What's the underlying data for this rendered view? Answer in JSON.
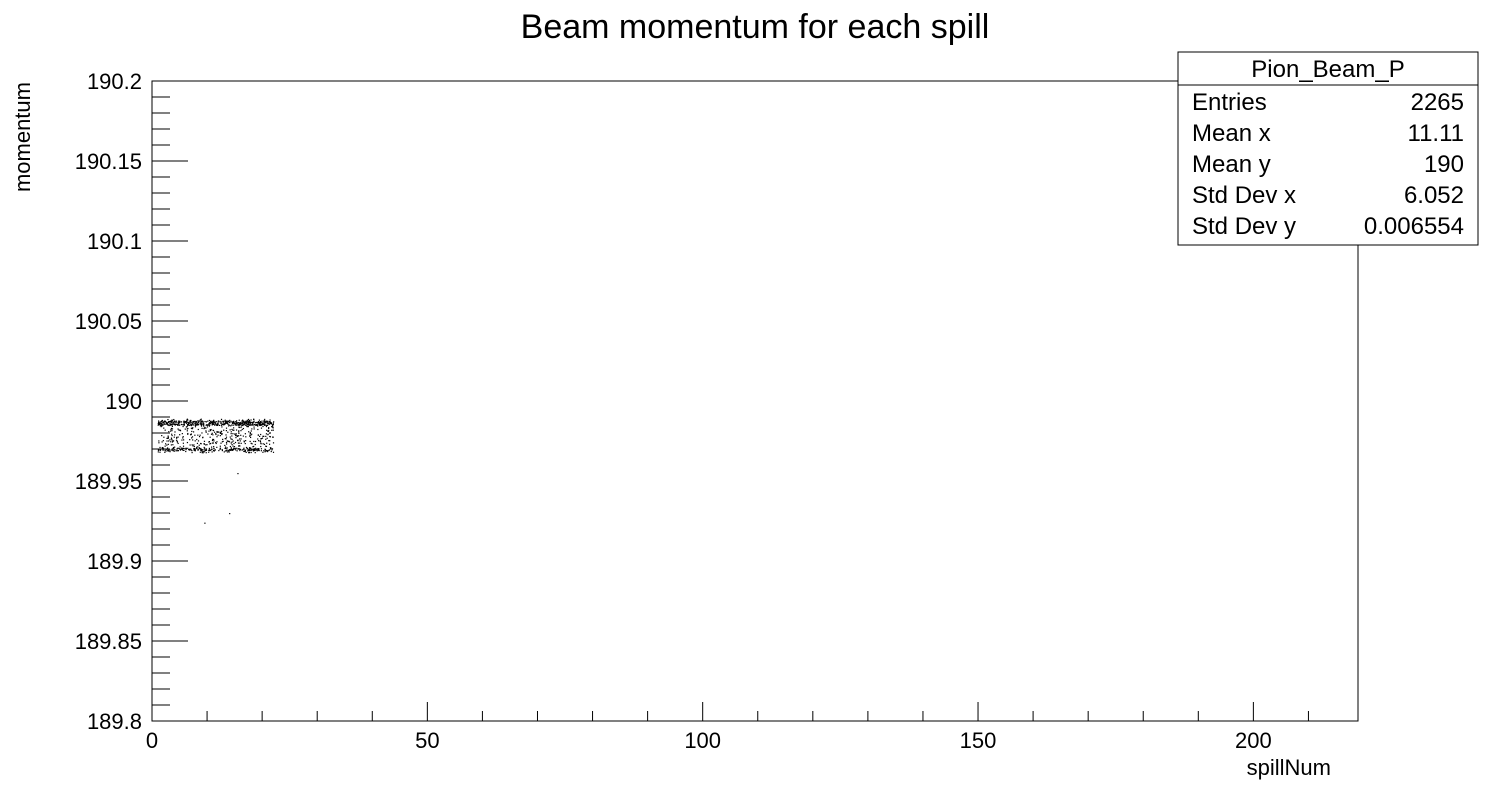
{
  "chart_data": {
    "type": "scatter",
    "title": "Beam momentum for each spill",
    "xlabel": "spillNum",
    "ylabel": "momentum",
    "xlim": [
      0,
      219
    ],
    "ylim": [
      189.8,
      190.2
    ],
    "x_ticks": [
      0,
      50,
      100,
      150,
      200
    ],
    "y_ticks": [
      189.8,
      189.85,
      189.9,
      189.95,
      190,
      190.05,
      190.1,
      190.15,
      190.2
    ],
    "x_tick_labels": [
      "0",
      "50",
      "100",
      "150",
      "200"
    ],
    "y_tick_labels": [
      "189.8",
      "189.85",
      "189.9",
      "189.95",
      "190",
      "190.05",
      "190.1",
      "190.15",
      "190.2"
    ],
    "grid": false,
    "point_cloud": {
      "x_range": [
        1,
        22
      ],
      "dense_bands": [
        189.9865,
        189.97
      ],
      "scatter_range": [
        189.968,
        189.989
      ],
      "outliers": [
        {
          "x": 14,
          "y": 189.93
        },
        {
          "x": 9.5,
          "y": 189.924
        },
        {
          "x": 15.5,
          "y": 189.955
        }
      ]
    },
    "stats_box": {
      "title": "Pion_Beam_P",
      "position": "top-right",
      "rows": [
        {
          "label": "Entries",
          "value": "2265"
        },
        {
          "label": "Mean x",
          "value": "11.11"
        },
        {
          "label": "Mean y",
          "value": "190"
        },
        {
          "label": "Std Dev x",
          "value": "6.052"
        },
        {
          "label": "Std Dev y",
          "value": "0.006554"
        }
      ]
    }
  }
}
